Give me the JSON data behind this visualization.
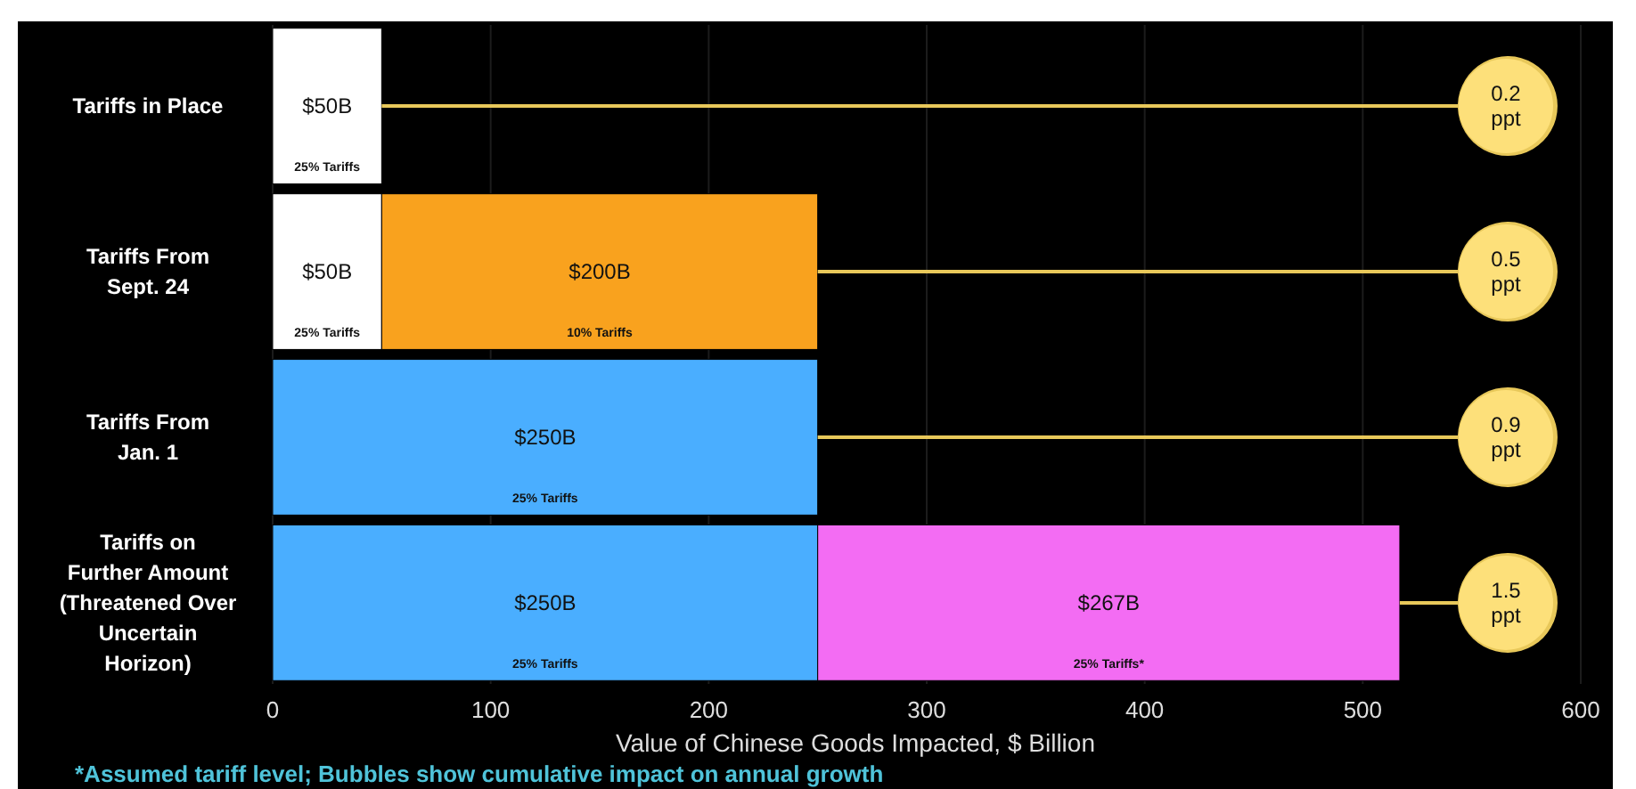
{
  "chart_data": {
    "type": "bar",
    "orientation": "horizontal",
    "stacked": true,
    "xlabel": "Value of Chinese Goods Impacted, $ Billion",
    "categories": [
      "Tariffs in Place",
      "Tariffs From Sept. 24",
      "Tariffs From Jan. 1",
      "Tariffs on Further Amount (Threatened Over Uncertain Horizon)"
    ],
    "series": [
      {
        "color": "#ffffff",
        "values": [
          50,
          50,
          null,
          null
        ],
        "value_labels": [
          "$50B",
          "$50B",
          null,
          null
        ]
      },
      {
        "color": "#f9a21e",
        "values": [
          null,
          200,
          null,
          null
        ],
        "value_labels": [
          null,
          "$200B",
          null,
          null
        ]
      },
      {
        "color": "#4aaeff",
        "values": [
          null,
          null,
          250,
          250
        ],
        "value_labels": [
          null,
          null,
          "$250B",
          "$250B"
        ]
      },
      {
        "color": "#f36cf3",
        "values": [
          null,
          null,
          null,
          267
        ],
        "value_labels": [
          null,
          null,
          null,
          "$267B"
        ]
      }
    ],
    "xlim": [
      0,
      600
    ],
    "xticks": [
      0,
      100,
      200,
      300,
      400,
      500,
      600
    ],
    "grid": "x",
    "annotations": [
      {
        "text": "25% Tariffs",
        "x": 25,
        "y": "Tariffs in Place"
      },
      {
        "text": "25% Tariffs",
        "x": 25,
        "y": "Tariffs From Sept. 24"
      },
      {
        "text": "10% Tariffs",
        "x": 150,
        "y": "Tariffs From Sept. 24"
      },
      {
        "text": "25% Tariffs",
        "x": 125,
        "y": "Tariffs From Jan. 1"
      },
      {
        "text": "25% Tariffs",
        "x": 125,
        "y": "Tariffs on Further Amount (Threatened Over Uncertain Horizon)"
      },
      {
        "text": "25% Tariffs*",
        "x": 383.5,
        "y": "Tariffs on Further Amount (Threatened Over Uncertain Horizon)"
      },
      "0.2 ppt",
      "0.5 ppt",
      "0.9 ppt",
      "1.5 ppt",
      "*Assumed tariff level; Bubbles show cumulative impact on annual growth"
    ]
  }
}
